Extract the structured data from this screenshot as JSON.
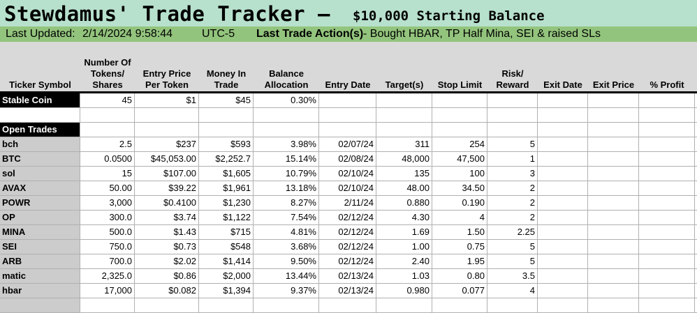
{
  "title": {
    "main": "Stewdamus' Trade Tracker –",
    "sub": "$10,000 Starting Balance"
  },
  "update": {
    "label": "Last Updated:",
    "datetime": "2/14/2024 9:58:44",
    "timezone": "UTC-5",
    "action_label": "Last Trade Action(s)",
    "action_text": " - Bought HBAR, TP Half Mina, SEI & raised SLs"
  },
  "columns": [
    "Ticker Symbol",
    "Number Of Tokens/ Shares",
    "Entry Price Per Token",
    "Money In Trade",
    "Balance Allocation",
    "Entry Date",
    "Target(s)",
    "Stop Limit",
    "Risk/ Reward",
    "Exit Date",
    "Exit Price",
    "% Profit"
  ],
  "stable": {
    "label": "Stable Coin",
    "tokens": "45",
    "entry_price": "$1",
    "money": "$45",
    "allocation": "0.30%"
  },
  "open_trades_label": "Open Trades",
  "trades": [
    {
      "ticker": "bch",
      "tokens": "2.5",
      "price": "$237",
      "money": "$593",
      "alloc": "3.98%",
      "date": "02/07/24",
      "target": "311",
      "stop": "254",
      "rr": "5"
    },
    {
      "ticker": "BTC",
      "tokens": "0.0500",
      "price": "$45,053.00",
      "money": "$2,252.7",
      "alloc": "15.14%",
      "date": "02/08/24",
      "target": "48,000",
      "stop": "47,500",
      "rr": "1"
    },
    {
      "ticker": "sol",
      "tokens": "15",
      "price": "$107.00",
      "money": "$1,605",
      "alloc": "10.79%",
      "date": "02/10/24",
      "target": "135",
      "stop": "100",
      "rr": "3"
    },
    {
      "ticker": "AVAX",
      "tokens": "50.00",
      "price": "$39.22",
      "money": "$1,961",
      "alloc": "13.18%",
      "date": "02/10/24",
      "target": "48.00",
      "stop": "34.50",
      "rr": "2"
    },
    {
      "ticker": "POWR",
      "tokens": "3,000",
      "price": "$0.4100",
      "money": "$1,230",
      "alloc": "8.27%",
      "date": "2/11/24",
      "target": "0.880",
      "stop": "0.190",
      "rr": "2"
    },
    {
      "ticker": "OP",
      "tokens": "300.0",
      "price": "$3.74",
      "money": "$1,122",
      "alloc": "7.54%",
      "date": "02/12/24",
      "target": "4.30",
      "stop": "4",
      "rr": "2"
    },
    {
      "ticker": "MINA",
      "tokens": "500.0",
      "price": "$1.43",
      "money": "$715",
      "alloc": "4.81%",
      "date": "02/12/24",
      "target": "1.69",
      "stop": "1.50",
      "rr": "2.25"
    },
    {
      "ticker": "SEI",
      "tokens": "750.0",
      "price": "$0.73",
      "money": "$548",
      "alloc": "3.68%",
      "date": "02/12/24",
      "target": "1.00",
      "stop": "0.75",
      "rr": "5"
    },
    {
      "ticker": "ARB",
      "tokens": "700.0",
      "price": "$2.02",
      "money": "$1,414",
      "alloc": "9.50%",
      "date": "02/12/24",
      "target": "2.40",
      "stop": "1.95",
      "rr": "5"
    },
    {
      "ticker": "matic",
      "tokens": "2,325.0",
      "price": "$0.86",
      "money": "$2,000",
      "alloc": "13.44%",
      "date": "02/13/24",
      "target": "1.03",
      "stop": "0.80",
      "rr": "3.5"
    },
    {
      "ticker": "hbar",
      "tokens": "17,000",
      "price": "$0.082",
      "money": "$1,394",
      "alloc": "9.37%",
      "date": "02/13/24",
      "target": "0.980",
      "stop": "0.077",
      "rr": "4"
    }
  ]
}
